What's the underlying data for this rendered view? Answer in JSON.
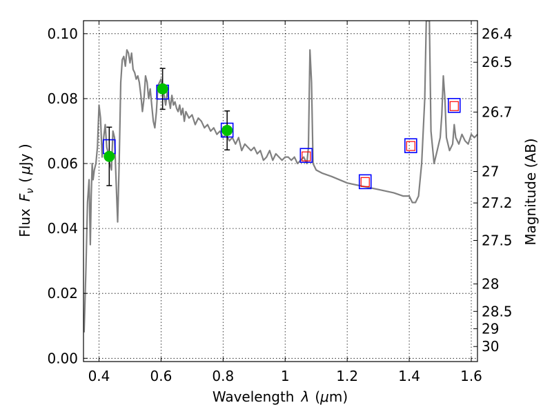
{
  "chart_data": {
    "type": "line",
    "xlabel_text": "Wavelength",
    "xlabel_symbol": "λ",
    "xlabel_unit_open": "(",
    "xlabel_unit_mu": "μ",
    "xlabel_unit_rest": "m)",
    "ylabel_text": "Flux",
    "ylabel_symbol": "F",
    "ylabel_sub": "ν",
    "ylabel_unit_open": "(",
    "ylabel_unit_mu": "μ",
    "ylabel_unit_rest": "Jy )",
    "ylabel_right": "Magnitude (AB)",
    "xlim": [
      0.35,
      1.62
    ],
    "ylim": [
      -0.001,
      0.104
    ],
    "x_ticks": [
      0.4,
      0.6,
      0.8,
      1.0,
      1.2,
      1.4,
      1.6
    ],
    "x_tick_labels": [
      "0.4",
      "0.6",
      "0.8",
      "1",
      "1.2",
      "1.4",
      "1.6"
    ],
    "y_ticks": [
      0.0,
      0.02,
      0.04,
      0.06,
      0.08,
      0.1
    ],
    "y_tick_labels": [
      "0.00",
      "0.02",
      "0.04",
      "0.06",
      "0.08",
      "0.10"
    ],
    "right_ticks": [
      {
        "mag": 26.4,
        "label": "26.4"
      },
      {
        "mag": 26.5,
        "label": "26.5"
      },
      {
        "mag": 26.7,
        "label": "26.7"
      },
      {
        "mag": 27.0,
        "label": "27"
      },
      {
        "mag": 27.2,
        "label": "27.2"
      },
      {
        "mag": 27.5,
        "label": "27.5"
      },
      {
        "mag": 28.0,
        "label": "28"
      },
      {
        "mag": 28.5,
        "label": "28.5"
      },
      {
        "mag": 29.0,
        "label": "29"
      },
      {
        "mag": 30.0,
        "label": "30"
      }
    ],
    "grid": true,
    "series": [
      {
        "kind": "line",
        "color": "#808080",
        "x": [
          0.352,
          0.358,
          0.363,
          0.368,
          0.372,
          0.375,
          0.378,
          0.381,
          0.385,
          0.39,
          0.395,
          0.4,
          0.405,
          0.41,
          0.415,
          0.42,
          0.425,
          0.43,
          0.435,
          0.44,
          0.445,
          0.45,
          0.455,
          0.46,
          0.465,
          0.47,
          0.475,
          0.48,
          0.485,
          0.49,
          0.495,
          0.5,
          0.505,
          0.51,
          0.515,
          0.52,
          0.525,
          0.53,
          0.535,
          0.54,
          0.545,
          0.55,
          0.555,
          0.56,
          0.565,
          0.57,
          0.575,
          0.58,
          0.585,
          0.59,
          0.595,
          0.6,
          0.605,
          0.61,
          0.615,
          0.62,
          0.625,
          0.63,
          0.635,
          0.64,
          0.645,
          0.65,
          0.655,
          0.66,
          0.665,
          0.67,
          0.675,
          0.68,
          0.69,
          0.7,
          0.71,
          0.72,
          0.73,
          0.74,
          0.75,
          0.76,
          0.77,
          0.78,
          0.79,
          0.8,
          0.81,
          0.82,
          0.83,
          0.84,
          0.85,
          0.86,
          0.87,
          0.88,
          0.89,
          0.9,
          0.91,
          0.92,
          0.93,
          0.94,
          0.95,
          0.96,
          0.97,
          0.98,
          0.99,
          1.0,
          1.01,
          1.02,
          1.03,
          1.04,
          1.05,
          1.06,
          1.07,
          1.075,
          1.08,
          1.085,
          1.09,
          1.1,
          1.12,
          1.15,
          1.2,
          1.25,
          1.3,
          1.35,
          1.38,
          1.4,
          1.41,
          1.42,
          1.43,
          1.44,
          1.45,
          1.455,
          1.46,
          1.465,
          1.47,
          1.48,
          1.49,
          1.5,
          1.505,
          1.51,
          1.515,
          1.52,
          1.53,
          1.54,
          1.545,
          1.55,
          1.56,
          1.57,
          1.58,
          1.59,
          1.6,
          1.61,
          1.62
        ],
        "y": [
          0.008,
          0.028,
          0.048,
          0.055,
          0.035,
          0.05,
          0.06,
          0.055,
          0.058,
          0.06,
          0.065,
          0.078,
          0.074,
          0.062,
          0.068,
          0.072,
          0.065,
          0.063,
          0.06,
          0.058,
          0.07,
          0.068,
          0.055,
          0.042,
          0.06,
          0.085,
          0.092,
          0.093,
          0.09,
          0.095,
          0.094,
          0.091,
          0.094,
          0.089,
          0.088,
          0.086,
          0.087,
          0.085,
          0.081,
          0.076,
          0.08,
          0.087,
          0.085,
          0.08,
          0.083,
          0.078,
          0.073,
          0.071,
          0.076,
          0.084,
          0.085,
          0.086,
          0.083,
          0.081,
          0.078,
          0.082,
          0.08,
          0.077,
          0.081,
          0.078,
          0.079,
          0.077,
          0.076,
          0.078,
          0.075,
          0.077,
          0.073,
          0.076,
          0.074,
          0.075,
          0.072,
          0.074,
          0.073,
          0.071,
          0.072,
          0.07,
          0.071,
          0.069,
          0.07,
          0.068,
          0.069,
          0.067,
          0.068,
          0.066,
          0.068,
          0.064,
          0.066,
          0.065,
          0.064,
          0.065,
          0.063,
          0.064,
          0.061,
          0.062,
          0.064,
          0.061,
          0.063,
          0.062,
          0.061,
          0.062,
          0.062,
          0.061,
          0.062,
          0.06,
          0.061,
          0.062,
          0.06,
          0.065,
          0.095,
          0.085,
          0.06,
          0.058,
          0.057,
          0.056,
          0.054,
          0.053,
          0.052,
          0.051,
          0.05,
          0.05,
          0.048,
          0.048,
          0.05,
          0.06,
          0.08,
          0.104,
          0.104,
          0.104,
          0.07,
          0.06,
          0.064,
          0.068,
          0.075,
          0.087,
          0.08,
          0.068,
          0.064,
          0.066,
          0.072,
          0.068,
          0.066,
          0.069,
          0.067,
          0.066,
          0.069,
          0.068,
          0.069
        ]
      },
      {
        "kind": "blue-squares",
        "color": "#0000ff",
        "x": [
          0.433,
          0.605,
          0.813,
          1.068,
          1.258,
          1.405,
          1.545
        ],
        "y": [
          0.0652,
          0.082,
          0.0703,
          0.0625,
          0.0544,
          0.0655,
          0.0779
        ]
      },
      {
        "kind": "red-squares",
        "color": "#ff0000",
        "x": [
          1.068,
          1.258,
          1.405,
          1.545
        ],
        "y": [
          0.0622,
          0.0543,
          0.0654,
          0.0777
        ]
      },
      {
        "kind": "green-points",
        "color": "#00c000",
        "x": [
          0.433,
          0.605,
          0.813
        ],
        "y": [
          0.0622,
          0.083,
          0.0702
        ],
        "err": [
          0.009,
          0.0063,
          0.006
        ]
      }
    ]
  }
}
